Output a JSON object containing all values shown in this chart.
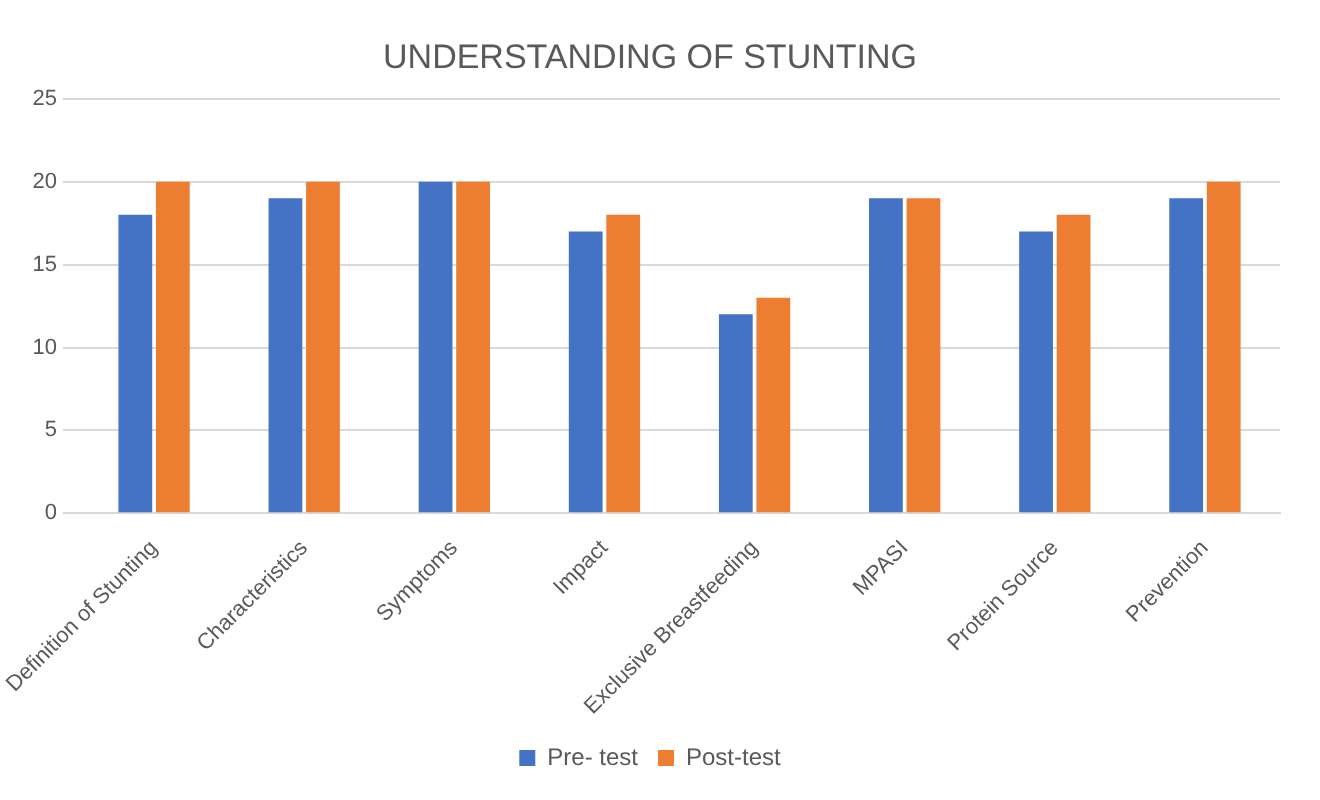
{
  "chart_data": {
    "type": "bar",
    "title": "UNDERSTANDING OF STUNTING",
    "categories": [
      "Definition of Stunting",
      "Characteristics",
      "Symptoms",
      "Impact",
      "Exclusive Breastfeeding",
      "MPASI",
      "Protein Source",
      "Prevention"
    ],
    "series": [
      {
        "name": "Pre- test",
        "color": "#4472c4",
        "values": [
          18,
          19,
          20,
          17,
          12,
          19,
          17,
          19
        ]
      },
      {
        "name": "Post-test",
        "color": "#ed7d31",
        "values": [
          20,
          20,
          20,
          18,
          13,
          19,
          18,
          20
        ]
      }
    ],
    "ylim": [
      0,
      25
    ],
    "yticks": [
      0,
      5,
      10,
      15,
      20,
      25
    ],
    "grid": "y",
    "legend": "bottom"
  }
}
